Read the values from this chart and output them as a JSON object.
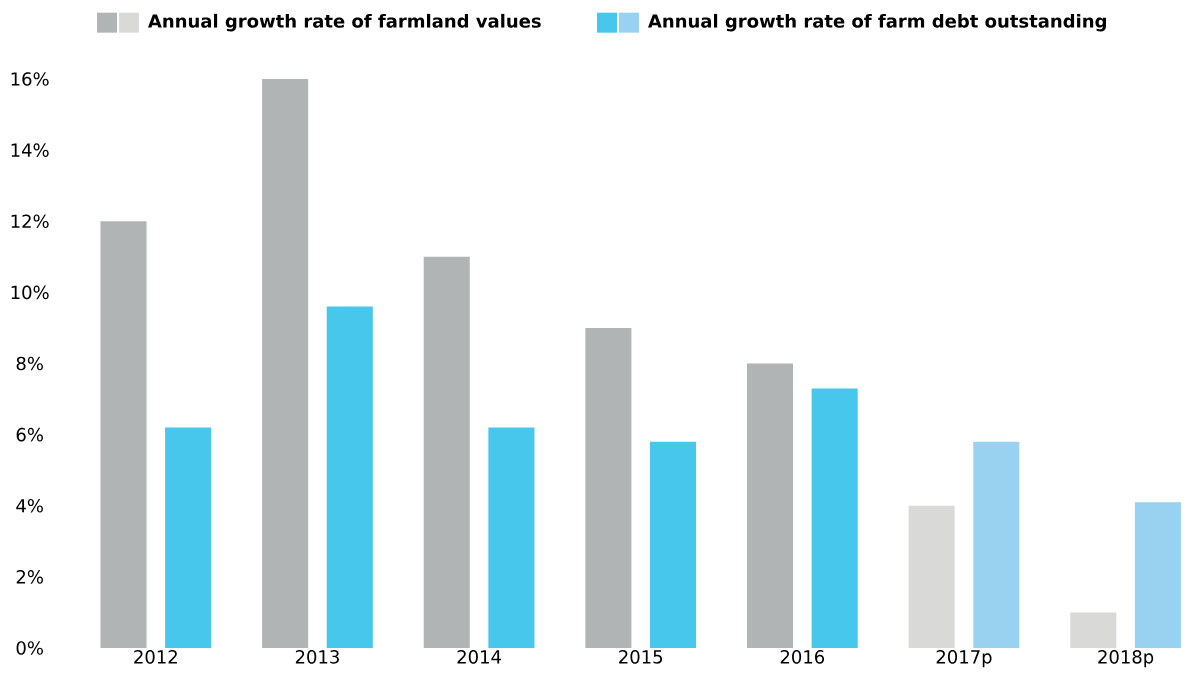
{
  "chart_data": {
    "type": "bar",
    "categories": [
      "2012",
      "2013",
      "2014",
      "2015",
      "2016",
      "2017p",
      "2018p"
    ],
    "series": [
      {
        "name": "Annual growth rate of farmland values",
        "color": "#b1b4b5",
        "colors": [
          "#b1b4b5",
          "#b1b4b5",
          "#b1b4b5",
          "#b1b4b5",
          "#b1b4b5",
          "#d9d9d8",
          "#d9d9d8"
        ],
        "values": [
          12.0,
          16.0,
          11.0,
          9.0,
          8.0,
          4.0,
          1.0
        ]
      },
      {
        "name": "Annual growth rate of farm debt outstanding",
        "color": "#48c7ec",
        "colors": [
          "#48c7ec",
          "#48c7ec",
          "#48c7ec",
          "#48c7ec",
          "#48c7ec",
          "#99d2f0",
          "#99d2f0"
        ],
        "values": [
          6.2,
          9.6,
          6.2,
          5.8,
          7.3,
          5.8,
          4.1
        ]
      }
    ],
    "ylim": [
      0,
      16
    ],
    "yticks": [
      {
        "value": 0,
        "label": "0%"
      },
      {
        "value": 2,
        "label": "2%"
      },
      {
        "value": 4,
        "label": "4%"
      },
      {
        "value": 6,
        "label": "6%"
      },
      {
        "value": 8,
        "label": "8%"
      },
      {
        "value": 10,
        "label": "10%"
      },
      {
        "value": 12,
        "label": "12%"
      },
      {
        "value": 14,
        "label": "14%"
      },
      {
        "value": 16,
        "label": "16%"
      }
    ],
    "legend": "top left"
  }
}
